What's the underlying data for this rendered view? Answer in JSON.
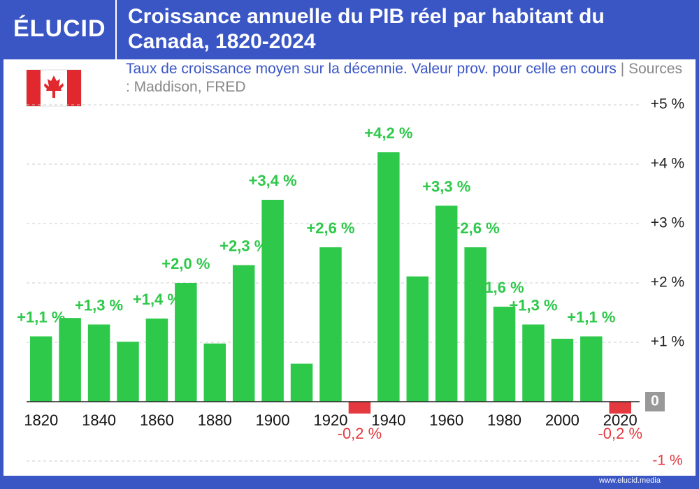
{
  "brand": "ÉLUCID",
  "footer": "www.elucid.media",
  "chart_data": {
    "type": "bar",
    "title": "Croissance annuelle du PIB réel par habitant du Canada, 1820-2024",
    "subtitle": "Taux de croissance moyen sur la décennie. Valeur prov. pour celle en cours",
    "source": "Sources : Maddison, FRED",
    "categories": [
      "1820",
      null,
      "1840",
      null,
      "1860",
      null,
      "1880",
      null,
      "1900",
      null,
      "1920",
      null,
      "1940",
      null,
      "1960",
      null,
      "1980",
      null,
      "2000",
      null,
      "2020"
    ],
    "values": [
      1.1,
      1.41,
      1.3,
      1.01,
      1.4,
      2.0,
      0.98,
      2.3,
      3.4,
      0.64,
      2.6,
      -0.2,
      4.2,
      2.11,
      3.3,
      2.6,
      1.6,
      1.3,
      1.06,
      1.1,
      -0.2
    ],
    "value_labels": [
      "+1,1 %",
      null,
      "+1,3 %",
      null,
      "+1,4 %",
      "+2,0 %",
      null,
      "+2,3 %",
      "+3,4 %",
      null,
      "+2,6 %",
      "-0,2 %",
      "+4,2 %",
      null,
      "+3,3 %",
      "+2,6 %",
      "1,6 %",
      "+1,3 %",
      null,
      "+1,1 %",
      "-0,2 %"
    ],
    "color": "#2ec84a",
    "negative_color": "#e4393e",
    "ylim": [
      -1,
      5
    ],
    "yticks": [
      {
        "value": -1,
        "label": "-1 %"
      },
      {
        "value": 0,
        "label": "0"
      },
      {
        "value": 1,
        "label": "+1 %"
      },
      {
        "value": 2,
        "label": "+2 %"
      },
      {
        "value": 3,
        "label": "+3 %"
      },
      {
        "value": 4,
        "label": "+4 %"
      },
      {
        "value": 5,
        "label": "+5 %"
      }
    ],
    "grid": true
  }
}
